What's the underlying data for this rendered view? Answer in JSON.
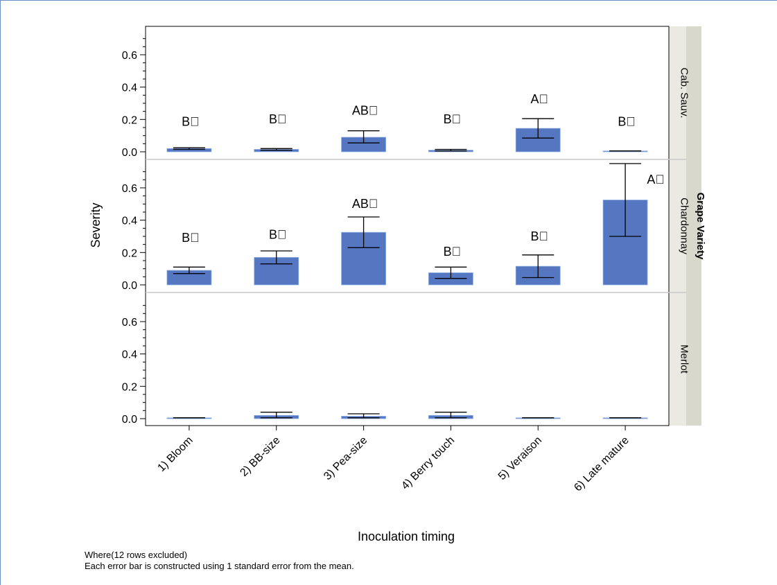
{
  "chart_data": {
    "type": "bar",
    "xlabel": "Inoculation timing",
    "ylabel": "Severity",
    "facet_label": "Grape Variety",
    "categories": [
      "1) Bloom",
      "2) BB-size",
      "3) Pea-size",
      "4) Berry touch",
      "5) Veraison",
      "6) Late mature"
    ],
    "ylim": [
      0,
      0.75
    ],
    "yticks": [
      0.0,
      0.2,
      0.4,
      0.6
    ],
    "ytick_labels": [
      "0.0",
      "0.2",
      "0.4",
      "0.6"
    ],
    "grid": false,
    "legend": "none",
    "bar_color": "#5577c2",
    "panels": [
      {
        "name": "Cab. Sauv.",
        "values": [
          0.02,
          0.015,
          0.09,
          0.01,
          0.145,
          0.005
        ],
        "error_low": [
          0.015,
          0.01,
          0.055,
          0.005,
          0.085,
          0.005
        ],
        "error_high": [
          0.025,
          0.02,
          0.13,
          0.015,
          0.205,
          0.005
        ],
        "letters": [
          "B⃞",
          "B⃞",
          "AB⃞",
          "B⃞",
          "A⃞",
          "B⃞"
        ],
        "letter_y": [
          0.16,
          0.175,
          0.23,
          0.175,
          0.3,
          0.16
        ]
      },
      {
        "name": "Chardonnay",
        "values": [
          0.09,
          0.17,
          0.325,
          0.075,
          0.115,
          0.525
        ],
        "error_low": [
          0.07,
          0.13,
          0.23,
          0.04,
          0.045,
          0.3
        ],
        "error_high": [
          0.11,
          0.21,
          0.42,
          0.11,
          0.185,
          0.75
        ],
        "letters": [
          "B⃞",
          "B⃞",
          "AB⃞",
          "B⃞",
          "B⃞",
          "A⃞"
        ],
        "letter_y": [
          0.265,
          0.285,
          0.475,
          0.18,
          0.275,
          0.625
        ]
      },
      {
        "name": "Merlot",
        "values": [
          0.005,
          0.02,
          0.015,
          0.02,
          0.005,
          0.005
        ],
        "error_low": [
          0.005,
          0.005,
          0.005,
          0.005,
          0.005,
          0.005
        ],
        "error_high": [
          0.005,
          0.04,
          0.03,
          0.04,
          0.005,
          0.005
        ],
        "letters": [
          "",
          "",
          "",
          "",
          "",
          ""
        ],
        "letter_y": [
          0,
          0,
          0,
          0,
          0,
          0
        ]
      }
    ]
  },
  "footnotes": {
    "line1": "Where(12 rows excluded)",
    "line2": "Each error bar is constructed using 1 standard error from the mean."
  }
}
